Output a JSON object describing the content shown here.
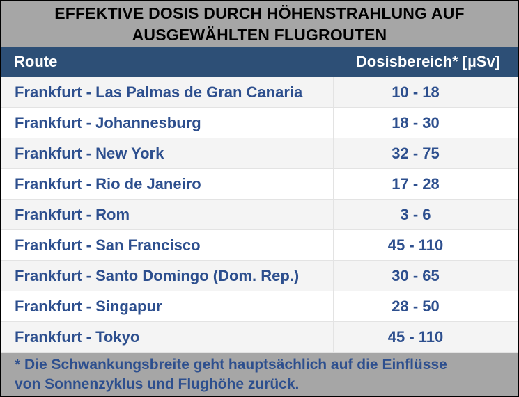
{
  "title": "EFFEKTIVE DOSIS DURCH HÖHENSTRAHLUNG AUF\nAUSGEWÄHLTEN FLUGROUTEN",
  "header": {
    "route": "Route",
    "dose": "Dosisbereich* [µSv]"
  },
  "rows": [
    {
      "route": "Frankfurt - Las Palmas de Gran Canaria",
      "dose": "10 - 18"
    },
    {
      "route": "Frankfurt - Johannesburg",
      "dose": "18 - 30"
    },
    {
      "route": "Frankfurt - New York",
      "dose": "32 - 75"
    },
    {
      "route": "Frankfurt - Rio de Janeiro",
      "dose": "17 - 28"
    },
    {
      "route": "Frankfurt - Rom",
      "dose": "3 - 6"
    },
    {
      "route": "Frankfurt - San Francisco",
      "dose": "45 - 110"
    },
    {
      "route": "Frankfurt - Santo Domingo (Dom. Rep.)",
      "dose": "30 - 65"
    },
    {
      "route": "Frankfurt - Singapur",
      "dose": "28 - 50"
    },
    {
      "route": "Frankfurt - Tokyo",
      "dose": "45 - 110"
    }
  ],
  "footnote": "* Die Schwankungsbreite geht hauptsächlich auf die Einflüsse\nvon Sonnenzyklus und Flughöhe zurück.",
  "colors": {
    "header_bg": "#2d4f76",
    "title_bg": "#a6a6a6",
    "text_blue": "#2d4f8e"
  }
}
